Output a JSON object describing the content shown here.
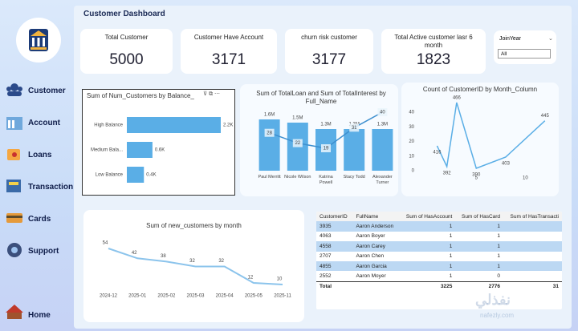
{
  "header": {
    "title": "Customer Dashboard"
  },
  "sidebar": {
    "items": [
      "Customer",
      "Account",
      "Loans",
      "Transaction",
      "Cards",
      "Support",
      "Home"
    ]
  },
  "kpis": [
    {
      "label": "Total Customer",
      "value": 5000
    },
    {
      "label": "Customer Have Account",
      "value": 3171
    },
    {
      "label": "churn risk customer",
      "value": 3177
    },
    {
      "label": "Total Active customer lasr 6 month",
      "value": 1823
    }
  ],
  "filter": {
    "label": "JoinYear",
    "value": "All"
  },
  "chart_data": [
    {
      "type": "hbar",
      "title": "Sum of Num_Customers by Balance_",
      "categories": [
        "High Balance",
        "Medium Bala...",
        "Low Balance"
      ],
      "values": [
        2200,
        600,
        400
      ],
      "value_labels": [
        "2.2K",
        "0.6K",
        "0.4K"
      ],
      "color": "#5aaee6"
    },
    {
      "type": "combo",
      "title": "Sum of TotalLoan and Sum of TotalInterest by Full_Name",
      "categories": [
        "Paul Merritt",
        "Nicole Wilson",
        "Katrina Powell",
        "Stacy Todd",
        "Alexander Turner"
      ],
      "series": [
        {
          "color": "#5aaee6",
          "values": [
            1600000,
            1500000,
            1300000,
            1300000,
            1300000
          ],
          "value_labels": [
            "1.6M",
            "1.5M",
            "1.3M",
            "1.3M",
            "1.3M"
          ]
        },
        {
          "color": "#3d8fcf",
          "values": [
            28,
            22,
            19,
            31,
            40
          ],
          "axis": "y2"
        }
      ]
    },
    {
      "type": "xyline",
      "title": "Count of CustomerID by Month_Column",
      "x": [
        1,
        2,
        3,
        5,
        8,
        12
      ],
      "values": [
        416,
        392,
        466,
        390,
        403,
        445
      ],
      "color": "#5aaee6",
      "xlim": [
        -1,
        13
      ],
      "xticks": [
        5,
        10
      ],
      "ylim": [
        0,
        40
      ],
      "yticks": [
        0,
        10,
        20,
        30,
        40
      ]
    },
    {
      "type": "line",
      "title": "Sum of new_customers by month",
      "categories": [
        "2024-12",
        "2025-01",
        "2025-02",
        "2025-03",
        "2025-04",
        "2025-05",
        "2025-11"
      ],
      "values": [
        54,
        42,
        38,
        32,
        32,
        12,
        10
      ],
      "color": "#8cc4ec"
    }
  ],
  "table": {
    "columns": [
      "CustomerID",
      "FullName",
      "Sum of HasAccount",
      "Sum of HasCard",
      "Sum of HasTransacti"
    ],
    "rows": [
      [
        3935,
        "Aaron Anderson",
        1,
        1
      ],
      [
        4063,
        "Aaron Boyer",
        1,
        1
      ],
      [
        4558,
        "Aaron Carey",
        1,
        1
      ],
      [
        2707,
        "Aaron Chen",
        1,
        1
      ],
      [
        4855,
        "Aaron Garcia",
        1,
        1
      ],
      [
        2552,
        "Aaron Moyer",
        1,
        0
      ]
    ],
    "total": {
      "label": "Total",
      "values": [
        3225,
        2776,
        "31"
      ]
    }
  },
  "watermark": {
    "text": "نفذلي",
    "site": "nafezly.com"
  }
}
